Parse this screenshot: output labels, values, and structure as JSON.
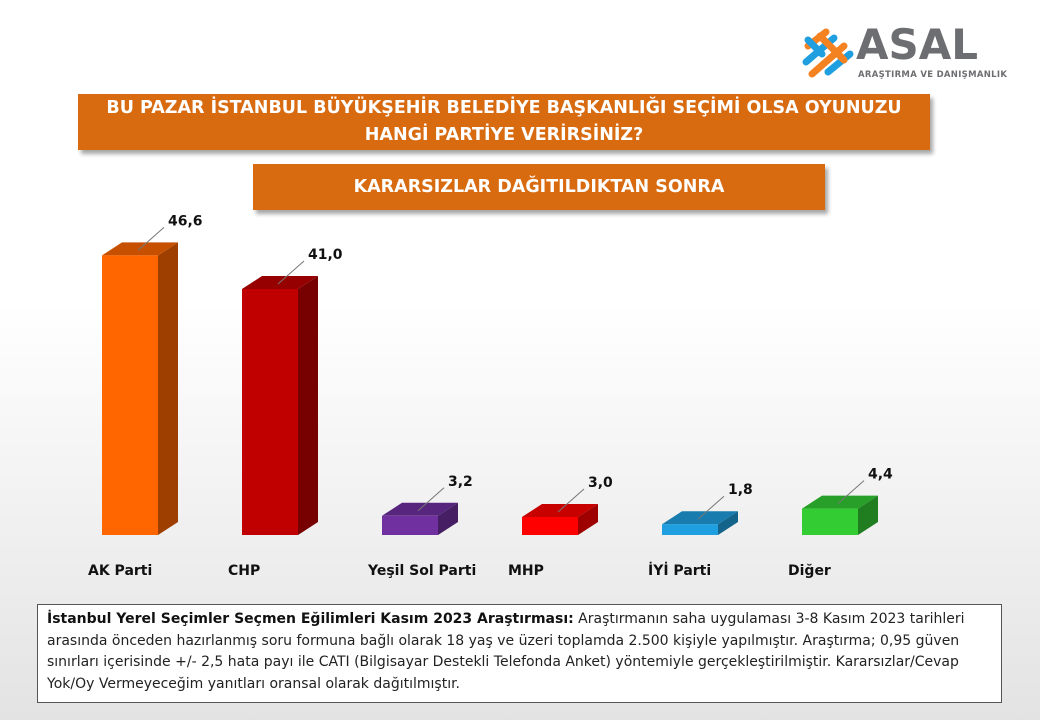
{
  "logo": {
    "name": "ASAL",
    "subtitle": "ARAŞTIRMA VE DANIŞMANLIK",
    "icon": "asal-logo-icon"
  },
  "question": {
    "line1": "BU PAZAR İSTANBUL BÜYÜKŞEHİR BELEDİYE BAŞKANLIĞI SEÇİMİ OLSA OYUNUZU",
    "line2": "HANGİ PARTİYE VERİRSİNİZ?"
  },
  "subtitle": "KARARSIZLAR DAĞITILDIKTAN SONRA",
  "colors": {
    "banner": "#d86a10"
  },
  "chart_data": {
    "type": "bar",
    "categories": [
      "AK Parti",
      "CHP",
      "Yeşil Sol Parti",
      "MHP",
      "İYİ Parti",
      "Diğer"
    ],
    "values": [
      46.6,
      41.0,
      3.2,
      3.0,
      1.8,
      4.4
    ],
    "value_labels": [
      "46,6",
      "41,0",
      "3,2",
      "3,0",
      "1,8",
      "4,4"
    ],
    "colors": [
      "#ff6600",
      "#c00000",
      "#7030a0",
      "#ff0000",
      "#1f9fe0",
      "#33cc33"
    ],
    "ylim": [
      0,
      50
    ],
    "grid": false,
    "legend": "none",
    "style": "3d"
  },
  "note": {
    "bold": "İstanbul Yerel Seçimler Seçmen Eğilimleri Kasım 2023 Araştırması:",
    "text": " Araştırmanın saha uygulaması 3-8 Kasım 2023 tarihleri arasında önceden hazırlanmış soru formuna bağlı olarak 18 yaş ve üzeri toplamda 2.500 kişiyle yapılmıştır. Araştırma; 0,95 güven sınırları içerisinde +/- 2,5 hata payı ile CATI (Bilgisayar Destekli Telefonda Anket) yöntemiyle gerçekleştirilmiştir. Kararsızlar/Cevap Yok/Oy Vermeyeceğim yanıtları oransal olarak dağıtılmıştır."
  }
}
